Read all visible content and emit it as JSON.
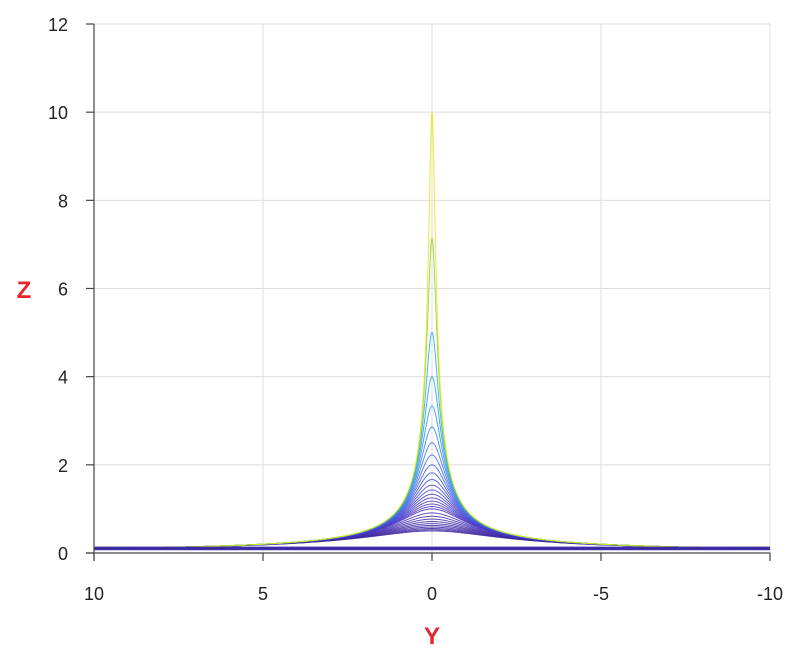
{
  "chart_data": {
    "type": "line",
    "title": "",
    "xlabel": "Y",
    "ylabel": "Z",
    "x_axis_reversed": true,
    "xlim": [
      10,
      -10
    ],
    "ylim": [
      0,
      12
    ],
    "xticks": [
      10,
      5,
      0,
      -5,
      -10
    ],
    "yticks": [
      0,
      2,
      4,
      6,
      8,
      10,
      12
    ],
    "xtick_labels": [
      "10",
      "5",
      "0",
      "-5",
      "-10"
    ],
    "ytick_labels": [
      "0",
      "2",
      "4",
      "6",
      "8",
      "10",
      "12"
    ],
    "grid": true,
    "legend": "none",
    "description_of_series": "family of projected 3D mesh curves Z = 1/sqrt(Y^2 + a^2) with parameter a from 0.1 to 2, peaking at Y = 0",
    "series": [
      {
        "a": 0.1,
        "peak_z": 10.0,
        "color": "#e8e80a"
      },
      {
        "a": 0.14,
        "peak_z": 7.1,
        "color": "#8ad23c"
      },
      {
        "a": 0.2,
        "peak_z": 5.0,
        "color": "#20b0d8"
      },
      {
        "a": 0.25,
        "peak_z": 4.0,
        "color": "#2aa0e0"
      },
      {
        "a": 0.3,
        "peak_z": 3.33,
        "color": "#3490e4"
      },
      {
        "a": 0.35,
        "peak_z": 2.86,
        "color": "#3a82e6"
      },
      {
        "a": 0.4,
        "peak_z": 2.5,
        "color": "#3e74e6"
      },
      {
        "a": 0.45,
        "peak_z": 2.22,
        "color": "#4168e4"
      },
      {
        "a": 0.5,
        "peak_z": 2.0,
        "color": "#435ee2"
      },
      {
        "a": 0.55,
        "peak_z": 1.82,
        "color": "#4456de"
      },
      {
        "a": 0.6,
        "peak_z": 1.67,
        "color": "#454fda"
      },
      {
        "a": 0.65,
        "peak_z": 1.54,
        "color": "#4549d6"
      },
      {
        "a": 0.7,
        "peak_z": 1.43,
        "color": "#4644d2"
      },
      {
        "a": 0.75,
        "peak_z": 1.33,
        "color": "#4640ce"
      },
      {
        "a": 0.8,
        "peak_z": 1.25,
        "color": "#463cca"
      },
      {
        "a": 0.85,
        "peak_z": 1.18,
        "color": "#4639c6"
      },
      {
        "a": 0.9,
        "peak_z": 1.11,
        "color": "#4636c2"
      },
      {
        "a": 0.95,
        "peak_z": 1.05,
        "color": "#4534be"
      },
      {
        "a": 1.0,
        "peak_z": 1.0,
        "color": "#4532ba"
      },
      {
        "a": 1.1,
        "peak_z": 0.91,
        "color": "#4430b6"
      },
      {
        "a": 1.2,
        "peak_z": 0.83,
        "color": "#432eb2"
      },
      {
        "a": 1.3,
        "peak_z": 0.77,
        "color": "#422cae"
      },
      {
        "a": 1.4,
        "peak_z": 0.71,
        "color": "#412aaa"
      },
      {
        "a": 1.5,
        "peak_z": 0.67,
        "color": "#4028a8"
      },
      {
        "a": 1.6,
        "peak_z": 0.63,
        "color": "#3f27a6"
      },
      {
        "a": 1.7,
        "peak_z": 0.59,
        "color": "#3e26a4"
      },
      {
        "a": 1.8,
        "peak_z": 0.56,
        "color": "#3d25a2"
      },
      {
        "a": 1.9,
        "peak_z": 0.53,
        "color": "#3c24a0"
      },
      {
        "a": 2.0,
        "peak_z": 0.5,
        "color": "#3b239e"
      }
    ],
    "colors": {
      "axis_title": "#e8262e",
      "grid": "#dcdcdc",
      "axis": "#444444"
    }
  }
}
